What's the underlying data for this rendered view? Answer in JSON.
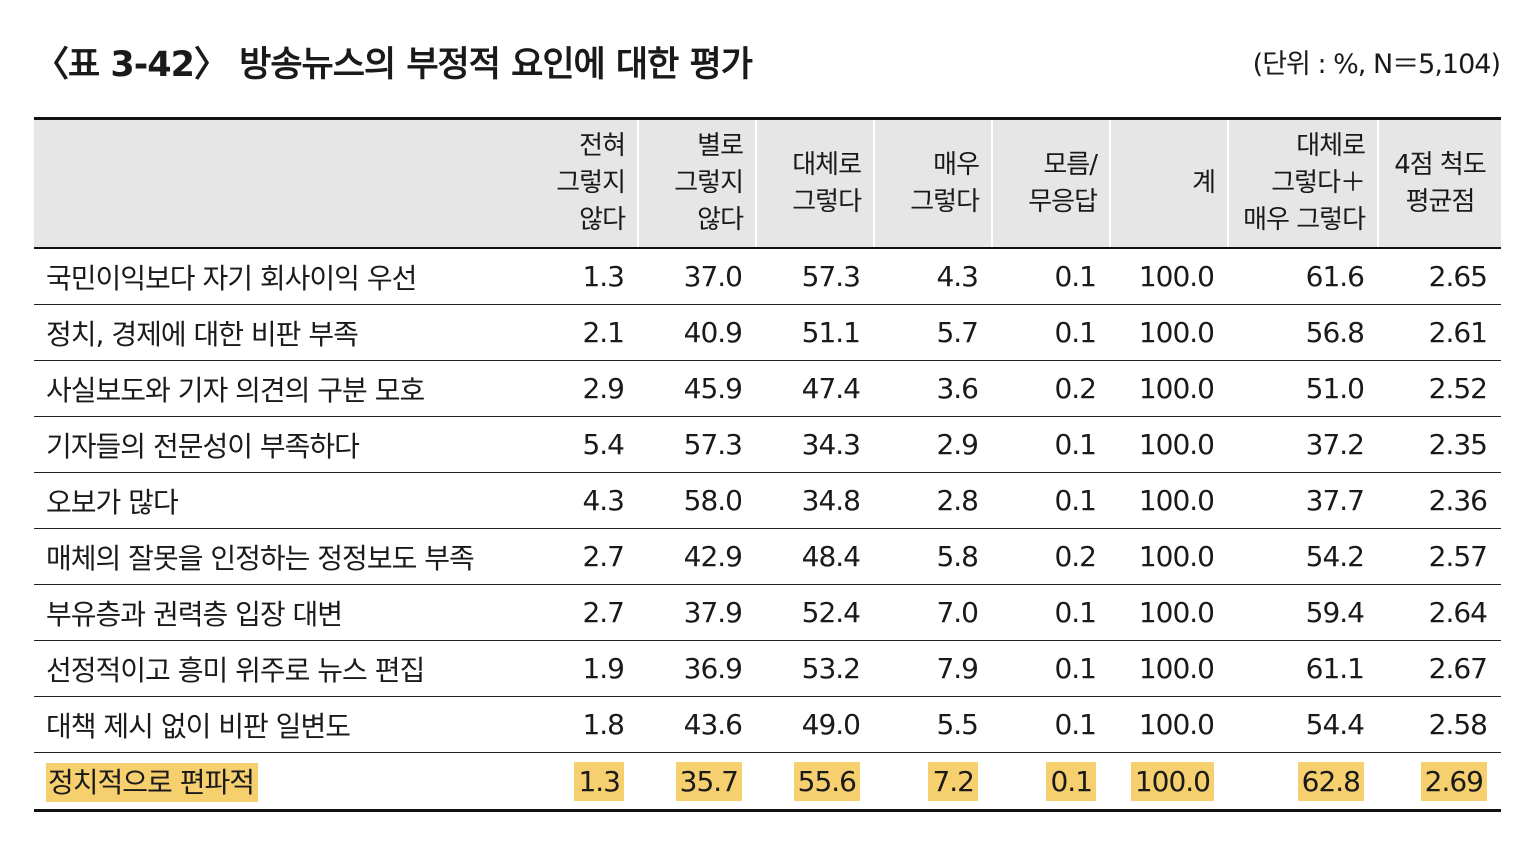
{
  "title": "〈표 3-42〉 방송뉴스의 부정적 요인에 대한 평가",
  "unit": "(단위 : %, N＝5,104)",
  "columns": [
    {
      "lines": [
        "전혀",
        "그렇지",
        "않다"
      ]
    },
    {
      "lines": [
        "별로",
        "그렇지",
        "않다"
      ]
    },
    {
      "lines": [
        "대체로",
        "그렇다"
      ]
    },
    {
      "lines": [
        "매우",
        "그렇다"
      ]
    },
    {
      "lines": [
        "모름/",
        "무응답"
      ]
    },
    {
      "lines": [
        "계"
      ]
    },
    {
      "lines": [
        "대체로",
        "그렇다＋",
        "매우 그렇다"
      ]
    },
    {
      "lines": [
        "4점 척도",
        "평균점"
      ]
    }
  ],
  "rows": [
    {
      "label": "국민이익보다 자기 회사이익 우선",
      "values": [
        "1.3",
        "37.0",
        "57.3",
        "4.3",
        "0.1",
        "100.0",
        "61.6",
        "2.65"
      ]
    },
    {
      "label": "정치, 경제에 대한 비판 부족",
      "values": [
        "2.1",
        "40.9",
        "51.1",
        "5.7",
        "0.1",
        "100.0",
        "56.8",
        "2.61"
      ]
    },
    {
      "label": "사실보도와 기자 의견의 구분 모호",
      "values": [
        "2.9",
        "45.9",
        "47.4",
        "3.6",
        "0.2",
        "100.0",
        "51.0",
        "2.52"
      ]
    },
    {
      "label": "기자들의 전문성이 부족하다",
      "values": [
        "5.4",
        "57.3",
        "34.3",
        "2.9",
        "0.1",
        "100.0",
        "37.2",
        "2.35"
      ]
    },
    {
      "label": "오보가 많다",
      "values": [
        "4.3",
        "58.0",
        "34.8",
        "2.8",
        "0.1",
        "100.0",
        "37.7",
        "2.36"
      ]
    },
    {
      "label": "매체의 잘못을 인정하는 정정보도 부족",
      "values": [
        "2.7",
        "42.9",
        "48.4",
        "5.8",
        "0.2",
        "100.0",
        "54.2",
        "2.57"
      ]
    },
    {
      "label": "부유층과 권력층 입장 대변",
      "values": [
        "2.7",
        "37.9",
        "52.4",
        "7.0",
        "0.1",
        "100.0",
        "59.4",
        "2.64"
      ]
    },
    {
      "label": "선정적이고 흥미 위주로 뉴스 편집",
      "values": [
        "1.9",
        "36.9",
        "53.2",
        "7.9",
        "0.1",
        "100.0",
        "61.1",
        "2.67"
      ]
    },
    {
      "label": "대책 제시 없이 비판 일변도",
      "values": [
        "1.8",
        "43.6",
        "49.0",
        "5.5",
        "0.1",
        "100.0",
        "54.4",
        "2.58"
      ]
    },
    {
      "label": "정치적으로 편파적",
      "values": [
        "1.3",
        "35.7",
        "55.6",
        "7.2",
        "0.1",
        "100.0",
        "62.8",
        "2.69"
      ],
      "highlight": true
    }
  ],
  "highlight_color": "#f6cf6e"
}
